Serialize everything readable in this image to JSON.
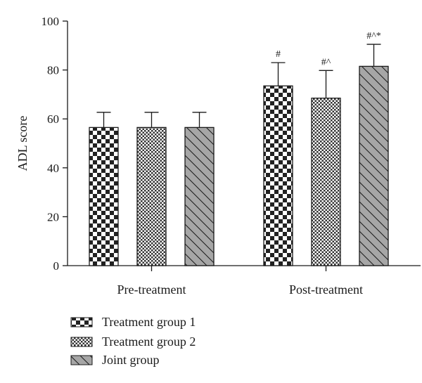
{
  "chart_data": {
    "type": "bar",
    "title": "",
    "xlabel": "",
    "ylabel": "ADL score",
    "ylim": [
      0,
      100
    ],
    "yticks": [
      0,
      20,
      40,
      60,
      80,
      100
    ],
    "grid": false,
    "legend_position": "bottom-left",
    "categories": [
      "Pre-treatment",
      "Post-treatment"
    ],
    "series": [
      {
        "name": "Treatment group 1",
        "pattern": "checkerboard-large",
        "values": [
          56.5,
          73.5
        ],
        "errors": [
          6.2,
          9.5
        ],
        "annotations": [
          "",
          "#"
        ]
      },
      {
        "name": "Treatment group 2",
        "pattern": "checkerboard-small",
        "values": [
          56.5,
          68.5
        ],
        "errors": [
          6.2,
          11.3
        ],
        "annotations": [
          "",
          "#^"
        ]
      },
      {
        "name": "Joint group",
        "pattern": "diagonal-hatch-gray",
        "values": [
          56.5,
          81.5
        ],
        "errors": [
          6.2,
          9.0
        ],
        "annotations": [
          "",
          "#^*"
        ]
      }
    ],
    "colors": {
      "ink": "#1a1a1a",
      "dark": "#222222",
      "hatch_fill": "#a6a6a6"
    }
  }
}
